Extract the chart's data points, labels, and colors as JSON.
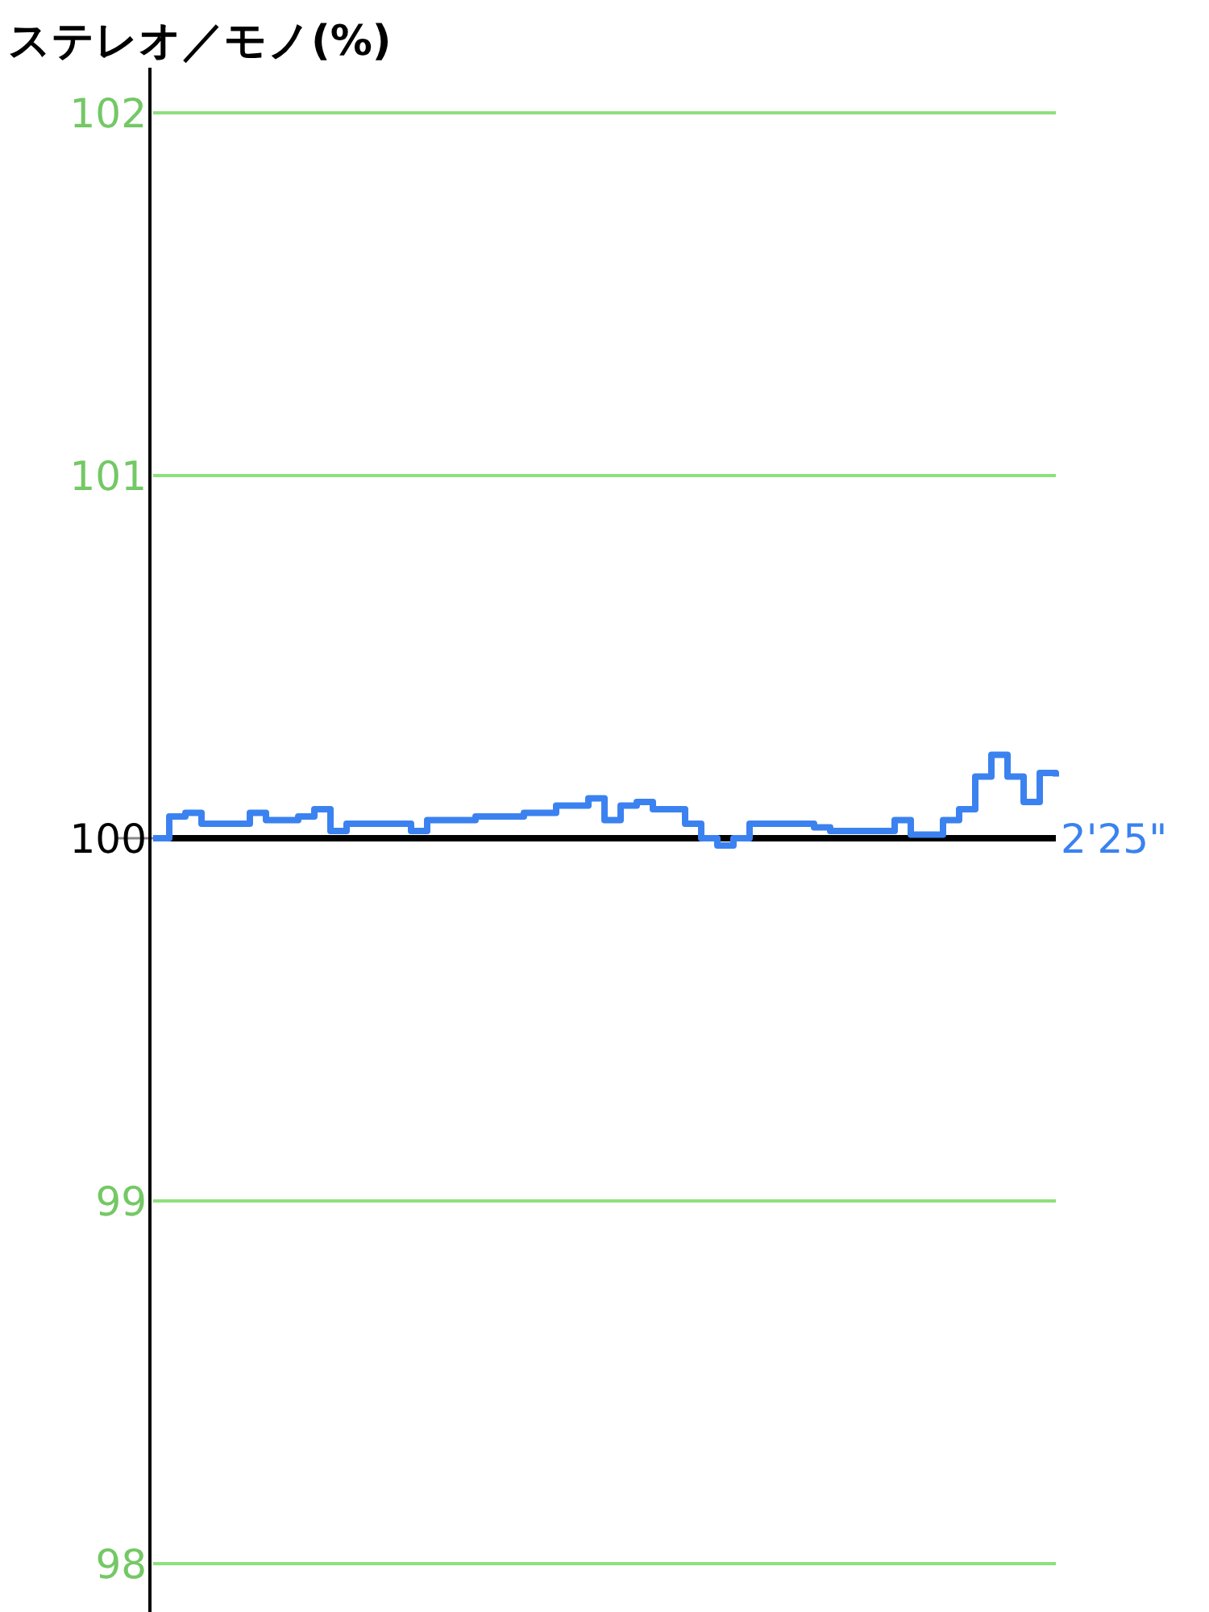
{
  "chart_data": {
    "type": "step",
    "ylabel": "ステレオ／モノ(%)",
    "categories": [
      null,
      null,
      null,
      null,
      null,
      null,
      null,
      null,
      null,
      null,
      null,
      null,
      null,
      null,
      null,
      null,
      null,
      null,
      null,
      null,
      null,
      null,
      null,
      null,
      null,
      null,
      null,
      null,
      null,
      null,
      null,
      null,
      null,
      null,
      null,
      null,
      null,
      null,
      null,
      null,
      null,
      null,
      null,
      null,
      null,
      null,
      null,
      null,
      null,
      null,
      null,
      null,
      null,
      null,
      null,
      null,
      null
    ],
    "series": [
      {
        "color": "#3b82f0",
        "values": [
          100.0,
          100.06,
          100.07,
          100.04,
          100.04,
          100.04,
          100.07,
          100.05,
          100.05,
          100.06,
          100.08,
          100.02,
          100.04,
          100.04,
          100.04,
          100.04,
          100.02,
          100.05,
          100.05,
          100.05,
          100.06,
          100.06,
          100.06,
          100.07,
          100.07,
          100.09,
          100.09,
          100.11,
          100.05,
          100.09,
          100.1,
          100.08,
          100.08,
          100.04,
          100.0,
          99.98,
          100.0,
          100.04,
          100.04,
          100.04,
          100.04,
          100.03,
          100.02,
          100.02,
          100.02,
          100.02,
          100.05,
          100.01,
          100.01,
          100.05,
          100.08,
          100.17,
          100.23,
          100.17,
          100.1,
          100.18,
          100.17
        ]
      }
    ],
    "ylim": [
      98,
      102
    ],
    "yticks": [
      98,
      99,
      100,
      101,
      102
    ],
    "grid": "y",
    "ref_lines": [
      {
        "axis": "y",
        "value": 100,
        "color": "#000000"
      }
    ],
    "annotations": [
      "2'25\""
    ]
  }
}
